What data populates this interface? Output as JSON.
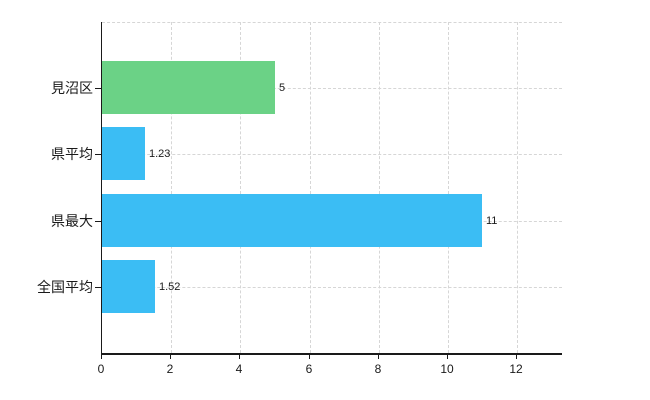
{
  "chart_data": {
    "type": "bar",
    "orientation": "horizontal",
    "title": "",
    "categories": [
      "見沼区",
      "県平均",
      "県最大",
      "全国平均"
    ],
    "values": [
      5,
      1.23,
      11,
      1.52
    ],
    "value_labels": [
      "5",
      "1.23",
      "11",
      "1.52"
    ],
    "bar_colors": [
      "#6bd286",
      "#3bbdf4",
      "#3bbdf4",
      "#3bbdf4"
    ],
    "x_ticks": [
      0,
      2,
      4,
      6,
      8,
      10,
      12
    ],
    "x_tick_labels": [
      "0",
      "2",
      "4",
      "6",
      "8",
      "10",
      "12"
    ],
    "xlim": [
      0,
      13.3
    ],
    "grid": true,
    "legend_position": "none",
    "grid_color": "#d6d6d6",
    "axis_color": "#1a1a1a",
    "text_color": "#1a1a1a",
    "background_color": "#ffffff"
  }
}
